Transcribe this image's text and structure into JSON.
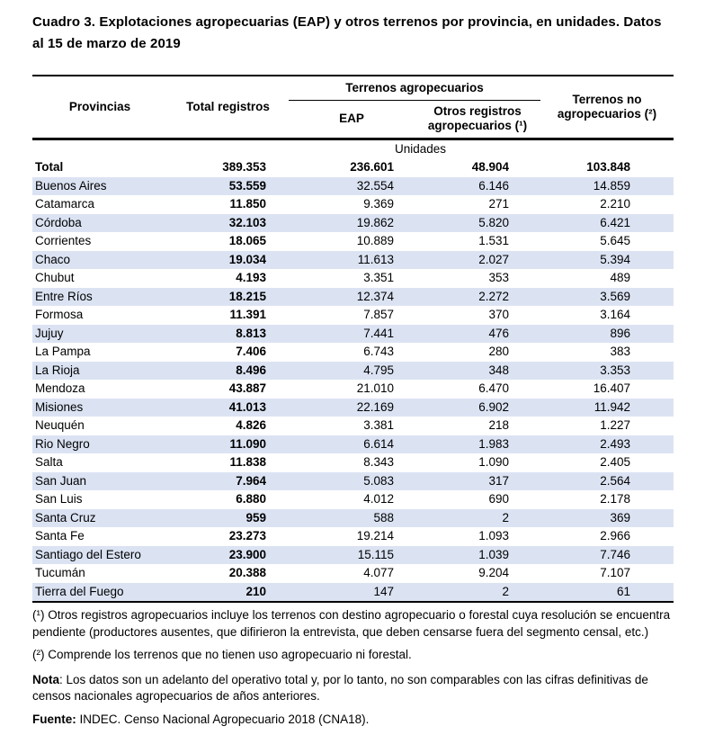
{
  "title": "Cuadro 3. Explotaciones agropecuarias (EAP) y otros terrenos por provincia, en unidades. Datos al 15 de marzo de 2019",
  "table": {
    "headers": {
      "provincias": "Provincias",
      "total_registros": "Total registros",
      "terrenos_agropecuarios": "Terrenos agropecuarios",
      "eap": "EAP",
      "otros_registros": "Otros registros agropecuarios (¹)",
      "terrenos_no_agropecuarios": "Terrenos no agropecuarios (²)"
    },
    "units_label": "Unidades",
    "total_row": [
      "Total",
      "389.353",
      "236.601",
      "48.904",
      "103.848"
    ],
    "rows": [
      [
        "Buenos Aires",
        "53.559",
        "32.554",
        "6.146",
        "14.859"
      ],
      [
        "Catamarca",
        "11.850",
        "9.369",
        "271",
        "2.210"
      ],
      [
        "Córdoba",
        "32.103",
        "19.862",
        "5.820",
        "6.421"
      ],
      [
        "Corrientes",
        "18.065",
        "10.889",
        "1.531",
        "5.645"
      ],
      [
        "Chaco",
        "19.034",
        "11.613",
        "2.027",
        "5.394"
      ],
      [
        "Chubut",
        "4.193",
        "3.351",
        "353",
        "489"
      ],
      [
        "Entre Ríos",
        "18.215",
        "12.374",
        "2.272",
        "3.569"
      ],
      [
        "Formosa",
        "11.391",
        "7.857",
        "370",
        "3.164"
      ],
      [
        "Jujuy",
        "8.813",
        "7.441",
        "476",
        "896"
      ],
      [
        "La Pampa",
        "7.406",
        "6.743",
        "280",
        "383"
      ],
      [
        "La Rioja",
        "8.496",
        "4.795",
        "348",
        "3.353"
      ],
      [
        "Mendoza",
        "43.887",
        "21.010",
        "6.470",
        "16.407"
      ],
      [
        "Misiones",
        "41.013",
        "22.169",
        "6.902",
        "11.942"
      ],
      [
        "Neuquén",
        "4.826",
        "3.381",
        "218",
        "1.227"
      ],
      [
        "Rio Negro",
        "11.090",
        "6.614",
        "1.983",
        "2.493"
      ],
      [
        "Salta",
        "11.838",
        "8.343",
        "1.090",
        "2.405"
      ],
      [
        "San Juan",
        "7.964",
        "5.083",
        "317",
        "2.564"
      ],
      [
        "San Luis",
        "6.880",
        "4.012",
        "690",
        "2.178"
      ],
      [
        "Santa Cruz",
        "959",
        "588",
        "2",
        "369"
      ],
      [
        "Santa Fe",
        "23.273",
        "19.214",
        "1.093",
        "2.966"
      ],
      [
        "Santiago del Estero",
        "23.900",
        "15.115",
        "1.039",
        "7.746"
      ],
      [
        "Tucumán",
        "20.388",
        "4.077",
        "9.204",
        "7.107"
      ],
      [
        "Tierra del Fuego",
        "210",
        "147",
        "2",
        "61"
      ]
    ]
  },
  "footnotes": [
    "(¹) Otros registros agropecuarios incluye los terrenos con destino agropecuario o forestal cuya resolución se encuentra pendiente (productores ausentes, que difirieron la entrevista, que deben censarse fuera del segmento censal, etc.)",
    "(²) Comprende los terrenos que no tienen uso agropecuario ni forestal."
  ],
  "nota": {
    "label": "Nota",
    "text": ": Los datos son un adelanto del operativo total y, por lo tanto, no son comparables con las cifras definitivas de censos nacionales agropecuarios de años anteriores."
  },
  "fuente": {
    "label": "Fuente:",
    "text": " INDEC. Censo Nacional Agropecuario 2018 (CNA18)."
  },
  "colors": {
    "row_stripe": "#dbe3f3",
    "border": "#000000",
    "text": "#000000"
  }
}
